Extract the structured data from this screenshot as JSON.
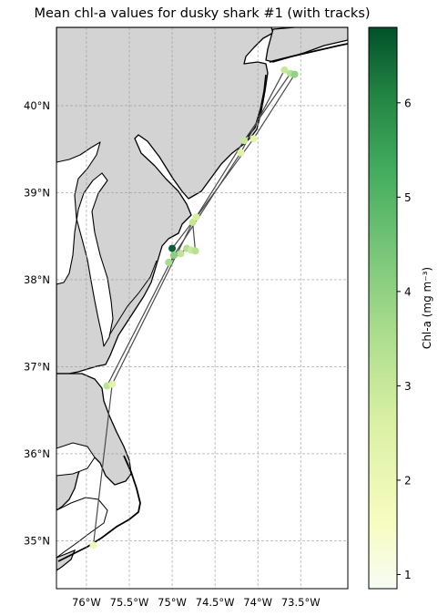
{
  "chart_data": {
    "type": "scatter",
    "title": "Mean chl-a values for dusky shark #1 (with tracks)",
    "xlabel": "",
    "ylabel": "",
    "xlim": [
      -76.35,
      -72.95
    ],
    "ylim": [
      34.45,
      40.9
    ],
    "x_ticks": [
      {
        "value": -76.0,
        "label": "76°W"
      },
      {
        "value": -75.5,
        "label": "75.5°W"
      },
      {
        "value": -75.0,
        "label": "75°W"
      },
      {
        "value": -74.5,
        "label": "74.5°W"
      },
      {
        "value": -74.0,
        "label": "74°W"
      },
      {
        "value": -73.5,
        "label": "73.5°W"
      }
    ],
    "y_ticks": [
      {
        "value": 35,
        "label": "35°N"
      },
      {
        "value": 36,
        "label": "36°N"
      },
      {
        "value": 37,
        "label": "37°N"
      },
      {
        "value": 38,
        "label": "38°N"
      },
      {
        "value": 39,
        "label": "39°N"
      },
      {
        "value": 40,
        "label": "40°N"
      }
    ],
    "grid": true,
    "colormap": "Greens",
    "colorbar": {
      "label": "Chl-a (mg m⁻³)",
      "range": [
        0.85,
        6.8
      ],
      "ticks": [
        {
          "value": 1,
          "label": "1"
        },
        {
          "value": 2,
          "label": "2"
        },
        {
          "value": 3,
          "label": "3"
        },
        {
          "value": 4,
          "label": "4"
        },
        {
          "value": 5,
          "label": "5"
        },
        {
          "value": 6,
          "label": "6"
        }
      ]
    },
    "points": [
      {
        "lon": -75.92,
        "lat": 34.95,
        "chl": 1.9
      },
      {
        "lon": -75.76,
        "lat": 36.78,
        "chl": 3.2
      },
      {
        "lon": -75.7,
        "lat": 36.8,
        "chl": 2.4
      },
      {
        "lon": -75.04,
        "lat": 38.2,
        "chl": 3.6
      },
      {
        "lon": -75.0,
        "lat": 38.36,
        "chl": 6.6
      },
      {
        "lon": -74.98,
        "lat": 38.28,
        "chl": 4.1
      },
      {
        "lon": -74.9,
        "lat": 38.3,
        "chl": 3.2
      },
      {
        "lon": -74.83,
        "lat": 38.36,
        "chl": 3.4
      },
      {
        "lon": -74.78,
        "lat": 38.34,
        "chl": 2.9
      },
      {
        "lon": -74.73,
        "lat": 38.33,
        "chl": 3.3
      },
      {
        "lon": -74.76,
        "lat": 38.66,
        "chl": 3.1
      },
      {
        "lon": -74.72,
        "lat": 38.72,
        "chl": 2.7
      },
      {
        "lon": -74.16,
        "lat": 39.6,
        "chl": 3.0
      },
      {
        "lon": -74.2,
        "lat": 39.46,
        "chl": 2.4
      },
      {
        "lon": -74.05,
        "lat": 39.62,
        "chl": 2.3
      },
      {
        "lon": -73.69,
        "lat": 40.41,
        "chl": 3.0
      },
      {
        "lon": -73.62,
        "lat": 40.37,
        "chl": 3.4
      },
      {
        "lon": -73.57,
        "lat": 40.36,
        "chl": 4.0
      }
    ],
    "tracks": [
      [
        [
          -75.92,
          34.95
        ],
        [
          -75.7,
          36.8
        ],
        [
          -74.76,
          38.66
        ],
        [
          -74.05,
          39.62
        ],
        [
          -73.57,
          40.36
        ]
      ],
      [
        [
          -75.76,
          36.78
        ],
        [
          -74.98,
          38.28
        ],
        [
          -74.2,
          39.46
        ],
        [
          -73.69,
          40.41
        ]
      ],
      [
        [
          -75.0,
          38.36
        ],
        [
          -74.72,
          38.72
        ],
        [
          -74.16,
          39.6
        ],
        [
          -73.62,
          40.37
        ]
      ],
      [
        [
          -75.04,
          38.2
        ],
        [
          -74.83,
          38.36
        ],
        [
          -74.73,
          38.33
        ],
        [
          -74.76,
          38.66
        ]
      ]
    ]
  }
}
